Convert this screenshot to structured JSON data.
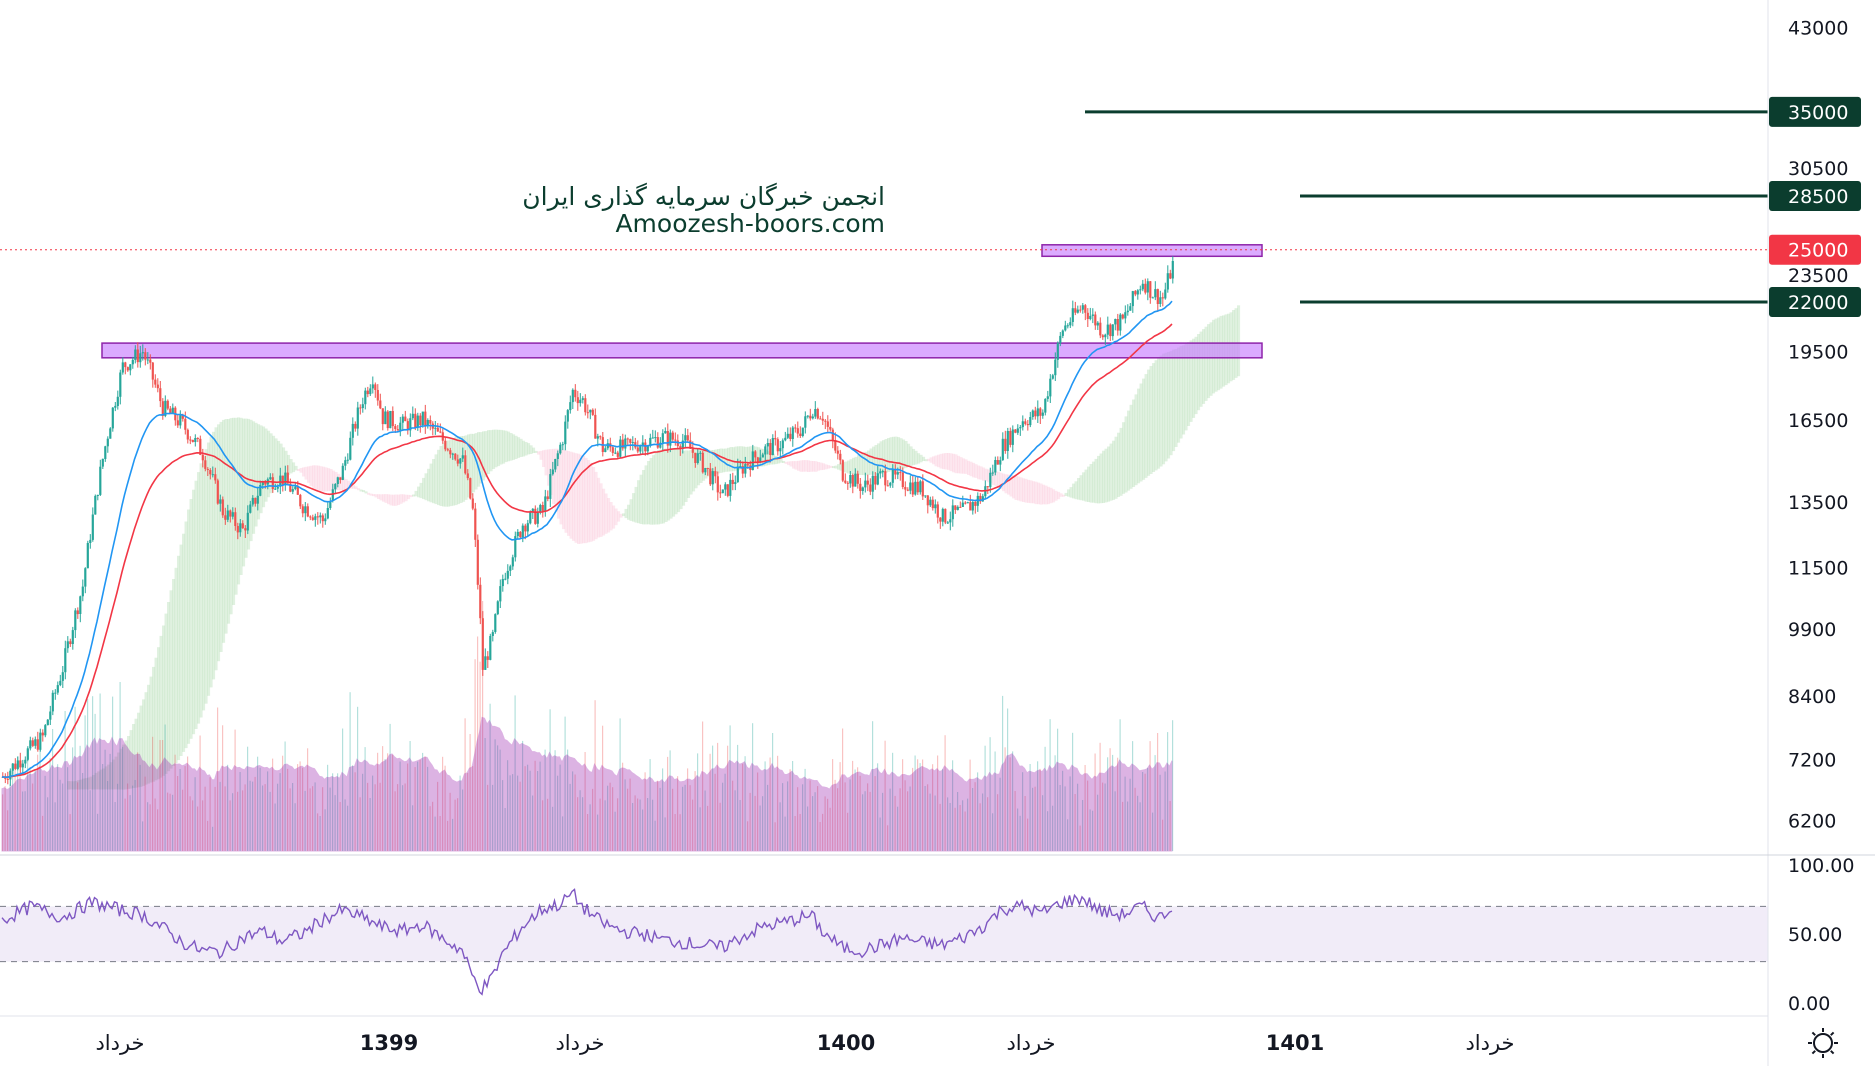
{
  "watermark": {
    "line1": "انجمن خبرگان سرمایه گذاری ایران",
    "line2": "Amoozesh-boors.com"
  },
  "colors": {
    "up": "#26a69a",
    "down": "#ef5350",
    "ema_fast": "#2196f3",
    "ema_slow": "#f23645",
    "zone": "#c77dff",
    "level_line": "#0b3d2e",
    "current_price": "#f23645",
    "cloud_up": "#a5d6a7",
    "cloud_down": "#f8bbd0",
    "volume_area": "#9c27b0",
    "rsi_line": "#7e57c2",
    "rsi_band": "#ede7f6"
  },
  "icons": {
    "settings": "settings-icon"
  },
  "chart_data": [
    {
      "type": "candlestick",
      "title": "",
      "log_scale": true,
      "ylim": [
        5700,
        46000
      ],
      "price_axis_ticks": [
        "43000",
        "30500",
        "23500",
        "19500",
        "16500",
        "13500",
        "11500",
        "9900",
        "8400",
        "7200",
        "6200"
      ],
      "time_axis_labels": [
        {
          "label": "خرداد",
          "bold": false
        },
        {
          "label": "1399",
          "bold": true
        },
        {
          "label": "خرداد",
          "bold": false
        },
        {
          "label": "1400",
          "bold": true
        },
        {
          "label": "خرداد",
          "bold": false
        },
        {
          "label": "1401",
          "bold": true
        },
        {
          "label": "خرداد",
          "bold": false
        }
      ],
      "price_path": [
        [
          0,
          6900
        ],
        [
          4,
          7600
        ],
        [
          6,
          9000
        ],
        [
          8,
          11000
        ],
        [
          10,
          15000
        ],
        [
          12,
          18800
        ],
        [
          14,
          19500
        ],
        [
          16,
          17000
        ],
        [
          18,
          16300
        ],
        [
          20,
          15200
        ],
        [
          22,
          13200
        ],
        [
          24,
          12600
        ],
        [
          26,
          14200
        ],
        [
          28,
          14300
        ],
        [
          30,
          13400
        ],
        [
          32,
          12900
        ],
        [
          34,
          14600
        ],
        [
          36,
          17400
        ],
        [
          37,
          18400
        ],
        [
          38,
          16600
        ],
        [
          40,
          16300
        ],
        [
          42,
          16500
        ],
        [
          44,
          15700
        ],
        [
          46,
          14900
        ],
        [
          47,
          13200
        ],
        [
          48,
          9000
        ],
        [
          49,
          9700
        ],
        [
          50,
          11200
        ],
        [
          52,
          12800
        ],
        [
          54,
          13200
        ],
        [
          56,
          15800
        ],
        [
          57,
          17700
        ],
        [
          58,
          17300
        ],
        [
          60,
          15400
        ],
        [
          62,
          15400
        ],
        [
          64,
          15600
        ],
        [
          66,
          15800
        ],
        [
          68,
          15700
        ],
        [
          70,
          14800
        ],
        [
          72,
          13700
        ],
        [
          74,
          14700
        ],
        [
          76,
          15300
        ],
        [
          78,
          15600
        ],
        [
          80,
          16200
        ],
        [
          81,
          17000
        ],
        [
          82,
          16700
        ],
        [
          84,
          14500
        ],
        [
          86,
          14000
        ],
        [
          88,
          14400
        ],
        [
          90,
          14200
        ],
        [
          92,
          13900
        ],
        [
          94,
          13000
        ],
        [
          96,
          13200
        ],
        [
          98,
          13700
        ],
        [
          100,
          15500
        ],
        [
          102,
          16500
        ],
        [
          104,
          16800
        ],
        [
          106,
          20600
        ],
        [
          108,
          21800
        ],
        [
          110,
          20500
        ],
        [
          112,
          21000
        ],
        [
          114,
          23200
        ],
        [
          115,
          22500
        ],
        [
          116,
          22200
        ],
        [
          117,
          24100
        ]
      ],
      "support_resistance_zones": [
        {
          "price_low": 19200,
          "price_high": 19900,
          "from_bar": 10,
          "to_bar": 126
        },
        {
          "price_low": 24600,
          "price_high": 25300,
          "from_bar": 104,
          "to_bar": 126
        }
      ],
      "horizontal_levels": [
        {
          "label": "35000",
          "price": 35000
        },
        {
          "label": "28500",
          "price": 28500
        },
        {
          "label": "22000",
          "price": 22000
        }
      ],
      "current_price": {
        "label": "25000",
        "price": 25000
      },
      "indicators": [
        "EMA fast",
        "EMA slow",
        "Ichimoku cloud",
        "Volume",
        "Volume moving average"
      ]
    },
    {
      "type": "line",
      "title": "",
      "ylim": [
        0,
        100
      ],
      "axis_ticks": [
        "100.00",
        "50.00",
        "0.00"
      ],
      "band": [
        30,
        70
      ],
      "rsi_path": [
        [
          0,
          60
        ],
        [
          3,
          70
        ],
        [
          6,
          62
        ],
        [
          9,
          73
        ],
        [
          12,
          67
        ],
        [
          14,
          64
        ],
        [
          16,
          55
        ],
        [
          18,
          44
        ],
        [
          20,
          38
        ],
        [
          22,
          37
        ],
        [
          24,
          47
        ],
        [
          26,
          52
        ],
        [
          28,
          45
        ],
        [
          30,
          50
        ],
        [
          32,
          60
        ],
        [
          34,
          67
        ],
        [
          36,
          62
        ],
        [
          38,
          55
        ],
        [
          40,
          52
        ],
        [
          42,
          57
        ],
        [
          44,
          47
        ],
        [
          46,
          38
        ],
        [
          47,
          20
        ],
        [
          48,
          10
        ],
        [
          49,
          18
        ],
        [
          50,
          35
        ],
        [
          52,
          55
        ],
        [
          54,
          68
        ],
        [
          56,
          72
        ],
        [
          57,
          80
        ],
        [
          58,
          70
        ],
        [
          60,
          58
        ],
        [
          62,
          52
        ],
        [
          64,
          50
        ],
        [
          66,
          46
        ],
        [
          68,
          44
        ],
        [
          70,
          42
        ],
        [
          72,
          40
        ],
        [
          74,
          48
        ],
        [
          76,
          55
        ],
        [
          78,
          58
        ],
        [
          80,
          62
        ],
        [
          81,
          63
        ],
        [
          82,
          52
        ],
        [
          84,
          40
        ],
        [
          86,
          38
        ],
        [
          88,
          42
        ],
        [
          90,
          47
        ],
        [
          92,
          44
        ],
        [
          94,
          42
        ],
        [
          96,
          47
        ],
        [
          98,
          55
        ],
        [
          100,
          68
        ],
        [
          102,
          70
        ],
        [
          104,
          65
        ],
        [
          106,
          73
        ],
        [
          108,
          76
        ],
        [
          110,
          66
        ],
        [
          112,
          64
        ],
        [
          114,
          70
        ],
        [
          115,
          64
        ],
        [
          116,
          62
        ],
        [
          117,
          70
        ]
      ]
    }
  ]
}
